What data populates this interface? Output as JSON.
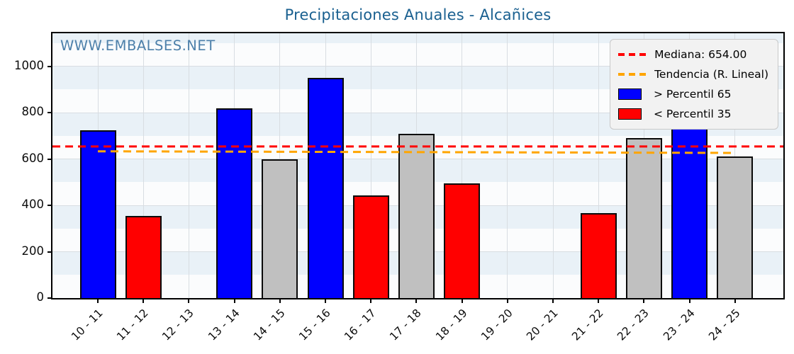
{
  "title": "Precipitaciones Anuales - Alcañices",
  "watermark": "WWW.EMBALSES.NET",
  "legend": {
    "position": "upper right",
    "items": [
      {
        "sample": "dashed-line",
        "color": "#ff0000",
        "label": "Mediana: 654.00"
      },
      {
        "sample": "dashed-line",
        "color": "#ffa500",
        "label": "Tendencia (R. Lineal)"
      },
      {
        "sample": "patch",
        "color": "#0000ff",
        "label": " > Percentil 65"
      },
      {
        "sample": "patch",
        "color": "#ff0000",
        "label": " < Percentil 35"
      }
    ]
  },
  "chart_data": {
    "type": "bar",
    "title": "Precipitaciones Anuales - Alcañices",
    "xlabel": "",
    "ylabel": "",
    "categories": [
      "10 - 11",
      "11 - 12",
      "12 - 13",
      "13 - 14",
      "14 - 15",
      "15 - 16",
      "16 - 17",
      "17 - 18",
      "18 - 19",
      "19 - 20",
      "20 - 21",
      "21 - 22",
      "22 - 23",
      "23 - 24",
      "24 - 25"
    ],
    "values": [
      723,
      354,
      null,
      818,
      598,
      949,
      442,
      709,
      494,
      null,
      null,
      366,
      690,
      775,
      612
    ],
    "bar_classes": [
      "above",
      "below",
      null,
      "above",
      "mid",
      "above",
      "below",
      "mid",
      "below",
      null,
      null,
      "below",
      "mid",
      "above",
      "mid"
    ],
    "median": 654.0,
    "median_label": "Mediana: 654.00",
    "trend": {
      "label": "Tendencia (R. Lineal)",
      "y_start": 633,
      "y_end": 626
    },
    "ylim": [
      0,
      1142
    ],
    "yticks": [
      0,
      200,
      400,
      600,
      800,
      1000
    ],
    "grid": true,
    "legend_position": "upper right",
    "colors": {
      "above_p65": "#0000ff",
      "below_p35": "#ff0000",
      "mid": "#c0c0c0",
      "median_line": "#ff0000",
      "trend_line": "#ffa500",
      "band_tint": "#e9f1f7",
      "band_plain": "#fbfcfd",
      "title_text": "#1a6090",
      "watermark_text": "#4d80aa"
    }
  }
}
